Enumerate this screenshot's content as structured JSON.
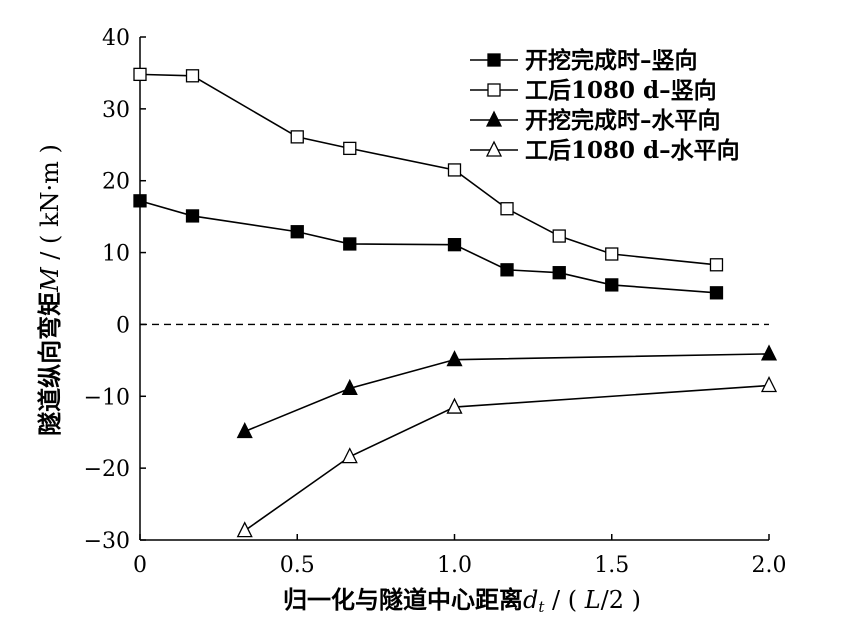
{
  "chart_data": {
    "type": "line",
    "title": "",
    "xlabel": {
      "text": "归一化与隧道中心距离",
      "var": "d",
      "sub": "t",
      "unit_pre": " / ( ",
      "unit_var": "L",
      "unit_post": "/2 )"
    },
    "ylabel": {
      "text": "隧道纵向弯矩",
      "var": "M",
      "unit": " / ( kN·m )"
    },
    "xlim": [
      0,
      2.0
    ],
    "ylim": [
      -30,
      40
    ],
    "xticks": [
      "0",
      "0.5",
      "1.0",
      "1.5",
      "2.0"
    ],
    "xtick_values": [
      0,
      0.5,
      1.0,
      1.5,
      2.0
    ],
    "yticks": [
      "40",
      "30",
      "20",
      "10",
      "0",
      "−10",
      "−20",
      "−30"
    ],
    "ytick_values": [
      40,
      30,
      20,
      10,
      0,
      -10,
      -20,
      -30
    ],
    "zero_line": "dashed",
    "legend_position": "top-right",
    "series": [
      {
        "name": "开挖完成时–竖向",
        "marker": "square-filled",
        "x": [
          0,
          0.167,
          0.5,
          0.667,
          1.0,
          1.167,
          1.333,
          1.5,
          1.833
        ],
        "y": [
          17.2,
          15.1,
          12.9,
          11.2,
          11.1,
          7.6,
          7.2,
          5.5,
          4.4
        ]
      },
      {
        "name": "工后1080 d–竖向",
        "marker": "square-open",
        "x": [
          0,
          0.167,
          0.5,
          0.667,
          1.0,
          1.167,
          1.333,
          1.5,
          1.833
        ],
        "y": [
          34.8,
          34.6,
          26.1,
          24.5,
          21.5,
          16.1,
          12.3,
          9.8,
          8.3
        ]
      },
      {
        "name": "开挖完成时–水平向",
        "marker": "triangle-filled",
        "x": [
          0.333,
          0.667,
          1.0,
          2.0
        ],
        "y": [
          -14.9,
          -8.9,
          -4.9,
          -4.1
        ]
      },
      {
        "name": "工后1080 d–水平向",
        "marker": "triangle-open",
        "x": [
          0.333,
          0.667,
          1.0,
          2.0
        ],
        "y": [
          -28.7,
          -18.4,
          -11.5,
          -8.5
        ]
      }
    ]
  }
}
